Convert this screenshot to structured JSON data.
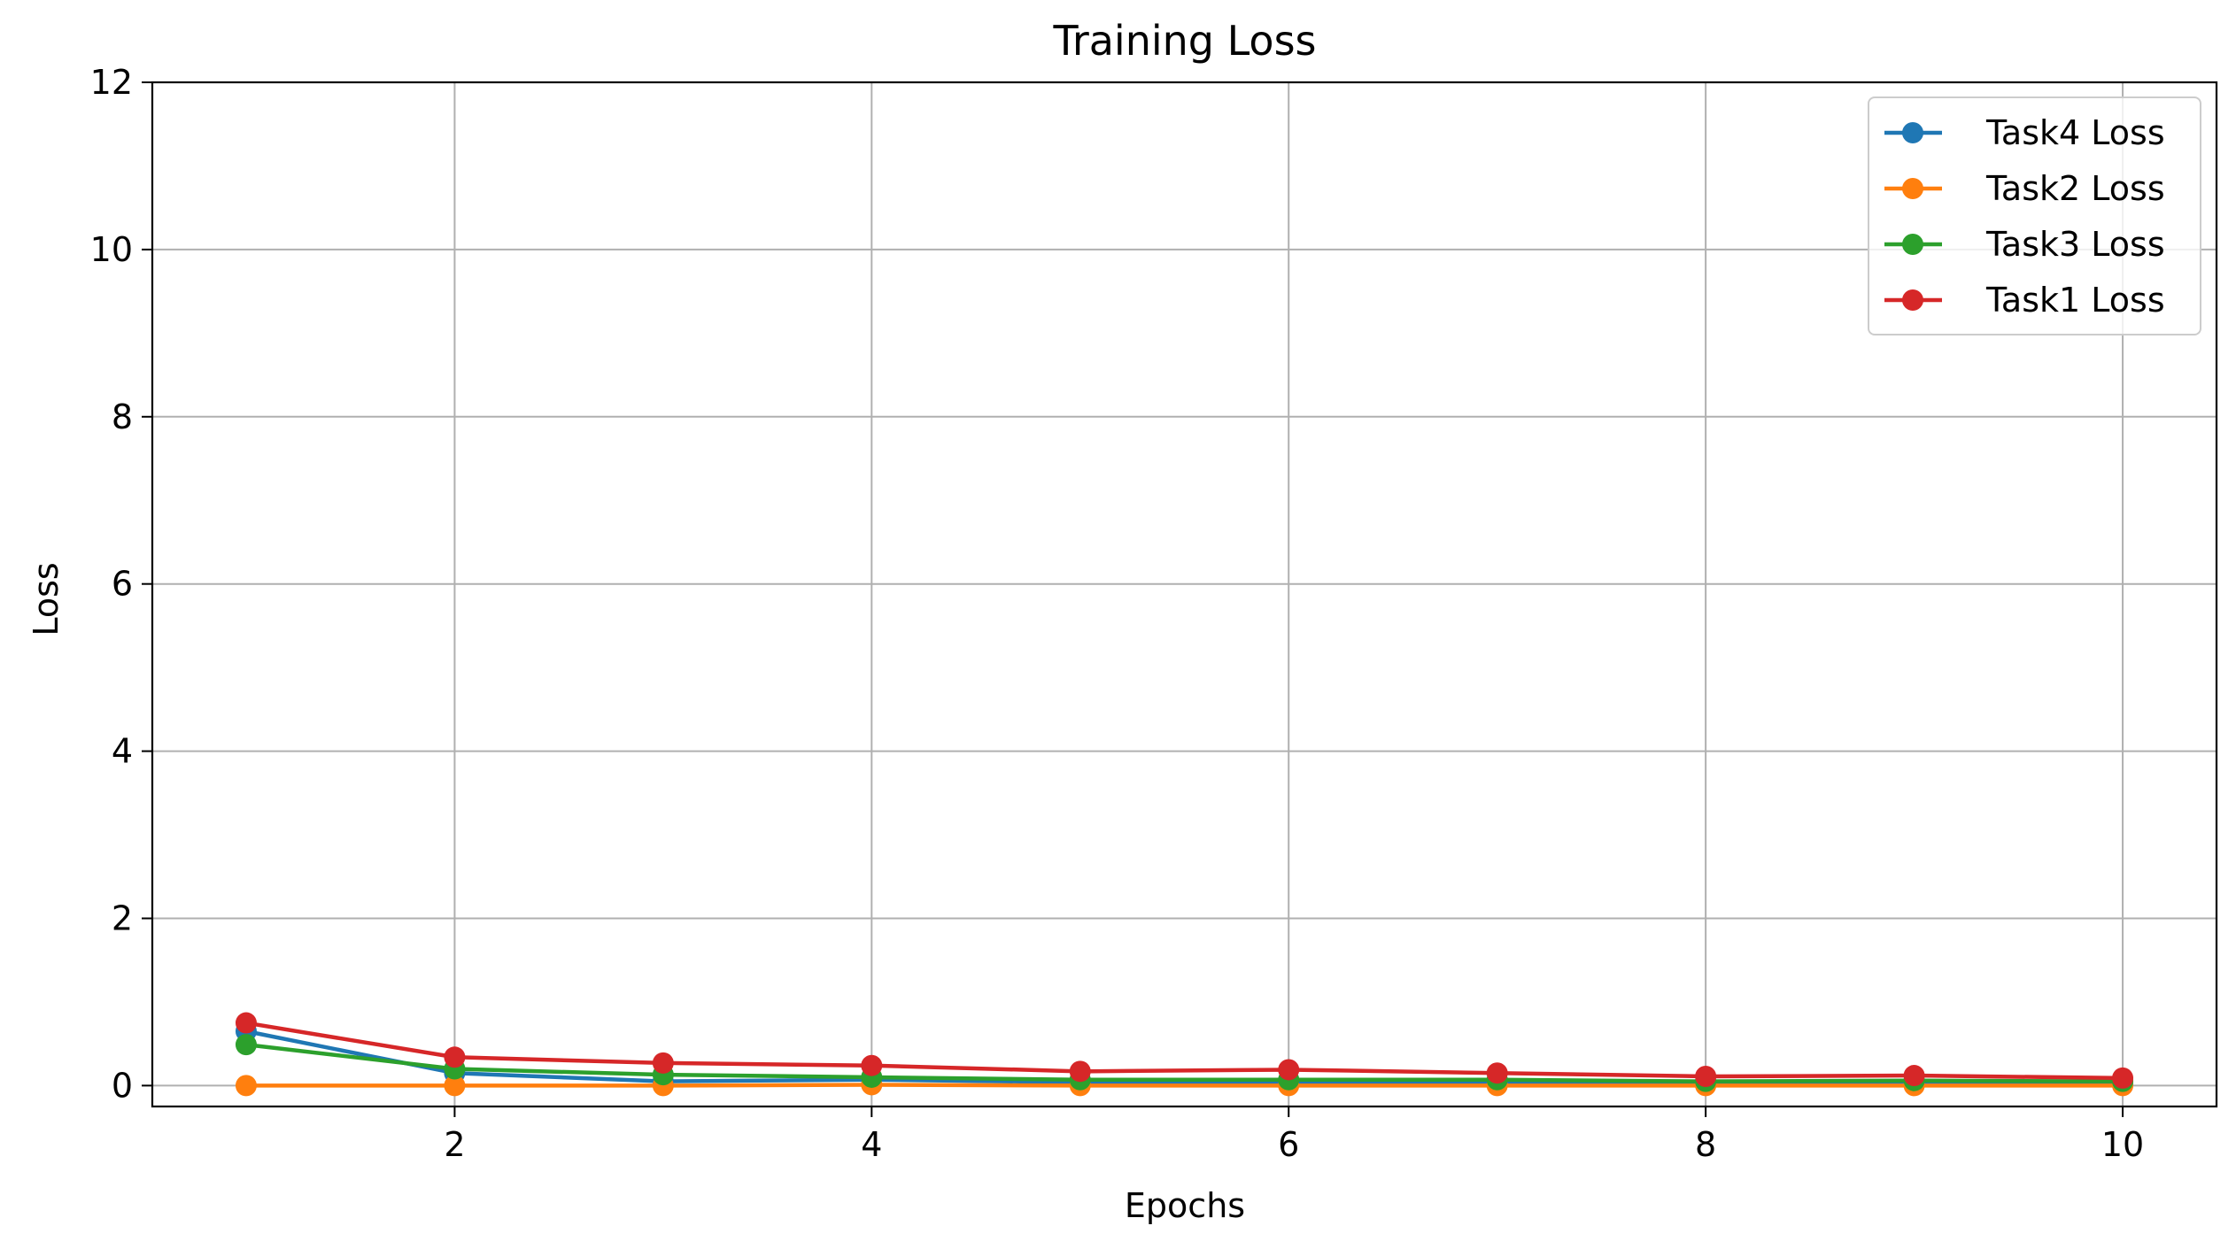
{
  "chart_data": {
    "type": "line",
    "title": "Training Loss",
    "xlabel": "Epochs",
    "ylabel": "Loss",
    "xlim": [
      0.55,
      10.45
    ],
    "ylim": [
      -0.25,
      12
    ],
    "xticks": [
      2,
      4,
      6,
      8,
      10
    ],
    "yticks": [
      0,
      2,
      4,
      6,
      8,
      10,
      12
    ],
    "grid": true,
    "legend_position": "top-right",
    "x": [
      1,
      2,
      3,
      4,
      5,
      6,
      7,
      8,
      9,
      10
    ],
    "series": [
      {
        "name": "Task4 Loss",
        "color": "#1f77b4",
        "values": [
          0.65,
          0.15,
          0.05,
          0.07,
          0.04,
          0.04,
          0.03,
          0.02,
          0.02,
          0.02
        ]
      },
      {
        "name": "Task2 Loss",
        "color": "#ff7f0e",
        "values": [
          0.0,
          0.0,
          0.0,
          0.01,
          0.0,
          0.0,
          0.0,
          0.0,
          0.0,
          0.0
        ]
      },
      {
        "name": "Task3 Loss",
        "color": "#2ca02c",
        "values": [
          0.49,
          0.2,
          0.13,
          0.1,
          0.07,
          0.07,
          0.07,
          0.05,
          0.06,
          0.05
        ]
      },
      {
        "name": "Task1 Loss",
        "color": "#d62728",
        "values": [
          0.75,
          0.34,
          0.27,
          0.24,
          0.17,
          0.19,
          0.15,
          0.11,
          0.12,
          0.09
        ]
      }
    ]
  }
}
